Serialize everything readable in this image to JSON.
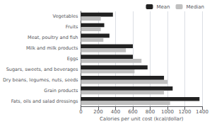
{
  "chart_data": {
    "type": "bar",
    "orientation": "horizontal",
    "categories": [
      "Fats, oils and salad dressings",
      "Grain products",
      "Dry beans, legumes, nuts, seeds",
      "Sugars, sweets, and beverages",
      "Eggs",
      "Milk and milk products",
      "Meat, poultry and fish",
      "Fruits",
      "Vegetables"
    ],
    "series": [
      {
        "name": "Mean",
        "color": "#222222",
        "values": [
          1370,
          1060,
          960,
          770,
          600,
          600,
          330,
          270,
          370
        ]
      },
      {
        "name": "Median",
        "color": "#c0c0c0",
        "values": [
          1030,
          960,
          1000,
          620,
          700,
          520,
          260,
          230,
          230
        ]
      }
    ],
    "xlabel": "Calories per unit cost (kcal/dollar)",
    "xlim": [
      0,
      1400
    ],
    "xticks": [
      0,
      200,
      400,
      600,
      800,
      1000,
      1200,
      1400
    ],
    "grid": true,
    "legend": "upper right"
  }
}
